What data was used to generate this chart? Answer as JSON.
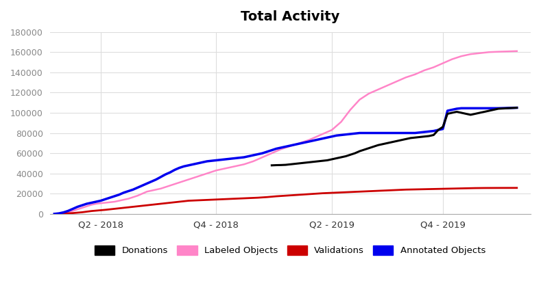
{
  "title": "Total Activity",
  "title_fontsize": 14,
  "title_fontweight": "bold",
  "background_color": "#ffffff",
  "ylim": [
    0,
    180000
  ],
  "yticks": [
    0,
    20000,
    40000,
    60000,
    80000,
    100000,
    120000,
    140000,
    160000,
    180000
  ],
  "xtick_labels": [
    "Q2 - 2018",
    "Q4 - 2018",
    "Q2 - 2019",
    "Q4 - 2019"
  ],
  "grid_color": "#dddddd",
  "series": {
    "labeled_objects": {
      "color": "#ff85c8",
      "label": "Labeled Objects",
      "linewidth": 1.8,
      "points": [
        [
          0.0,
          0
        ],
        [
          0.01,
          500
        ],
        [
          0.02,
          1000
        ],
        [
          0.03,
          2000
        ],
        [
          0.04,
          3000
        ],
        [
          0.05,
          4500
        ],
        [
          0.06,
          6000
        ],
        [
          0.07,
          7500
        ],
        [
          0.08,
          9000
        ],
        [
          0.09,
          10000
        ],
        [
          0.1,
          10500
        ],
        [
          0.11,
          11000
        ],
        [
          0.12,
          11500
        ],
        [
          0.13,
          12000
        ],
        [
          0.14,
          13000
        ],
        [
          0.15,
          14000
        ],
        [
          0.16,
          15000
        ],
        [
          0.17,
          16500
        ],
        [
          0.18,
          18000
        ],
        [
          0.19,
          20000
        ],
        [
          0.2,
          22000
        ],
        [
          0.21,
          23000
        ],
        [
          0.22,
          24000
        ],
        [
          0.23,
          25000
        ],
        [
          0.24,
          26500
        ],
        [
          0.25,
          28000
        ],
        [
          0.26,
          29500
        ],
        [
          0.27,
          31000
        ],
        [
          0.28,
          32500
        ],
        [
          0.29,
          34000
        ],
        [
          0.3,
          35500
        ],
        [
          0.31,
          37000
        ],
        [
          0.32,
          38500
        ],
        [
          0.33,
          40000
        ],
        [
          0.34,
          41500
        ],
        [
          0.35,
          43000
        ],
        [
          0.36,
          44000
        ],
        [
          0.37,
          45000
        ],
        [
          0.38,
          46000
        ],
        [
          0.39,
          47000
        ],
        [
          0.4,
          48000
        ],
        [
          0.41,
          49000
        ],
        [
          0.42,
          50500
        ],
        [
          0.43,
          52000
        ],
        [
          0.44,
          54000
        ],
        [
          0.45,
          56000
        ],
        [
          0.46,
          58000
        ],
        [
          0.47,
          60000
        ],
        [
          0.48,
          62000
        ],
        [
          0.49,
          64000
        ],
        [
          0.5,
          65500
        ],
        [
          0.51,
          67000
        ],
        [
          0.52,
          68500
        ],
        [
          0.53,
          70000
        ],
        [
          0.54,
          71500
        ],
        [
          0.55,
          73000
        ],
        [
          0.56,
          75000
        ],
        [
          0.57,
          77000
        ],
        [
          0.58,
          79000
        ],
        [
          0.59,
          81000
        ],
        [
          0.6,
          83000
        ],
        [
          0.61,
          87000
        ],
        [
          0.62,
          91000
        ],
        [
          0.63,
          97000
        ],
        [
          0.64,
          103000
        ],
        [
          0.65,
          108000
        ],
        [
          0.66,
          113000
        ],
        [
          0.67,
          116000
        ],
        [
          0.68,
          119000
        ],
        [
          0.69,
          121000
        ],
        [
          0.7,
          123000
        ],
        [
          0.71,
          125000
        ],
        [
          0.72,
          127000
        ],
        [
          0.73,
          129000
        ],
        [
          0.74,
          131000
        ],
        [
          0.75,
          133000
        ],
        [
          0.76,
          135000
        ],
        [
          0.77,
          136500
        ],
        [
          0.78,
          138000
        ],
        [
          0.79,
          140000
        ],
        [
          0.8,
          142000
        ],
        [
          0.81,
          143500
        ],
        [
          0.82,
          145000
        ],
        [
          0.83,
          147000
        ],
        [
          0.84,
          149000
        ],
        [
          0.85,
          151000
        ],
        [
          0.86,
          153000
        ],
        [
          0.87,
          154500
        ],
        [
          0.88,
          156000
        ],
        [
          0.89,
          157000
        ],
        [
          0.9,
          158000
        ],
        [
          0.91,
          158500
        ],
        [
          0.92,
          159000
        ],
        [
          0.93,
          159500
        ],
        [
          0.94,
          160000
        ],
        [
          0.95,
          160200
        ],
        [
          0.96,
          160400
        ],
        [
          1.0,
          161000
        ]
      ]
    },
    "validations": {
      "color": "#cc0000",
      "label": "Validations",
      "linewidth": 2.0,
      "points": [
        [
          0.0,
          0
        ],
        [
          0.01,
          200
        ],
        [
          0.02,
          400
        ],
        [
          0.03,
          600
        ],
        [
          0.04,
          800
        ],
        [
          0.05,
          1200
        ],
        [
          0.06,
          1600
        ],
        [
          0.07,
          2200
        ],
        [
          0.08,
          2800
        ],
        [
          0.09,
          3200
        ],
        [
          0.1,
          3600
        ],
        [
          0.11,
          4000
        ],
        [
          0.12,
          4500
        ],
        [
          0.13,
          5000
        ],
        [
          0.14,
          5500
        ],
        [
          0.15,
          6000
        ],
        [
          0.16,
          6500
        ],
        [
          0.17,
          7000
        ],
        [
          0.18,
          7500
        ],
        [
          0.19,
          8000
        ],
        [
          0.2,
          8500
        ],
        [
          0.21,
          9000
        ],
        [
          0.22,
          9500
        ],
        [
          0.23,
          10000
        ],
        [
          0.24,
          10500
        ],
        [
          0.25,
          11000
        ],
        [
          0.26,
          11500
        ],
        [
          0.27,
          12000
        ],
        [
          0.28,
          12500
        ],
        [
          0.29,
          13000
        ],
        [
          0.3,
          13200
        ],
        [
          0.31,
          13400
        ],
        [
          0.32,
          13600
        ],
        [
          0.33,
          13800
        ],
        [
          0.34,
          14000
        ],
        [
          0.35,
          14200
        ],
        [
          0.36,
          14400
        ],
        [
          0.37,
          14600
        ],
        [
          0.38,
          14800
        ],
        [
          0.39,
          15000
        ],
        [
          0.4,
          15200
        ],
        [
          0.41,
          15400
        ],
        [
          0.42,
          15600
        ],
        [
          0.43,
          15800
        ],
        [
          0.44,
          16000
        ],
        [
          0.45,
          16300
        ],
        [
          0.46,
          16600
        ],
        [
          0.47,
          17000
        ],
        [
          0.48,
          17400
        ],
        [
          0.49,
          17700
        ],
        [
          0.5,
          18000
        ],
        [
          0.51,
          18300
        ],
        [
          0.52,
          18600
        ],
        [
          0.53,
          18900
        ],
        [
          0.54,
          19200
        ],
        [
          0.55,
          19500
        ],
        [
          0.56,
          19800
        ],
        [
          0.57,
          20100
        ],
        [
          0.58,
          20400
        ],
        [
          0.59,
          20600
        ],
        [
          0.6,
          20800
        ],
        [
          0.61,
          21000
        ],
        [
          0.62,
          21200
        ],
        [
          0.63,
          21400
        ],
        [
          0.64,
          21600
        ],
        [
          0.65,
          21800
        ],
        [
          0.66,
          22000
        ],
        [
          0.67,
          22200
        ],
        [
          0.68,
          22400
        ],
        [
          0.69,
          22600
        ],
        [
          0.7,
          22800
        ],
        [
          0.71,
          23000
        ],
        [
          0.72,
          23200
        ],
        [
          0.73,
          23400
        ],
        [
          0.74,
          23600
        ],
        [
          0.75,
          23800
        ],
        [
          0.76,
          24000
        ],
        [
          0.77,
          24100
        ],
        [
          0.78,
          24200
        ],
        [
          0.79,
          24300
        ],
        [
          0.8,
          24400
        ],
        [
          0.81,
          24500
        ],
        [
          0.82,
          24600
        ],
        [
          0.83,
          24700
        ],
        [
          0.84,
          24800
        ],
        [
          0.85,
          24900
        ],
        [
          0.86,
          25000
        ],
        [
          0.87,
          25100
        ],
        [
          0.88,
          25200
        ],
        [
          0.89,
          25300
        ],
        [
          0.9,
          25400
        ],
        [
          0.91,
          25500
        ],
        [
          0.92,
          25550
        ],
        [
          0.93,
          25600
        ],
        [
          0.94,
          25620
        ],
        [
          0.95,
          25640
        ],
        [
          0.96,
          25660
        ],
        [
          1.0,
          25700
        ]
      ]
    },
    "annotated_objects": {
      "color": "#0000ee",
      "label": "Annotated Objects",
      "linewidth": 2.5,
      "points": [
        [
          0.0,
          0
        ],
        [
          0.01,
          500
        ],
        [
          0.02,
          1500
        ],
        [
          0.03,
          3000
        ],
        [
          0.04,
          5000
        ],
        [
          0.05,
          7000
        ],
        [
          0.06,
          8500
        ],
        [
          0.07,
          10000
        ],
        [
          0.08,
          11000
        ],
        [
          0.09,
          12000
        ],
        [
          0.1,
          13000
        ],
        [
          0.11,
          14500
        ],
        [
          0.12,
          16000
        ],
        [
          0.13,
          17500
        ],
        [
          0.14,
          19000
        ],
        [
          0.15,
          21000
        ],
        [
          0.16,
          22500
        ],
        [
          0.17,
          24000
        ],
        [
          0.18,
          26000
        ],
        [
          0.19,
          28000
        ],
        [
          0.2,
          30000
        ],
        [
          0.21,
          32000
        ],
        [
          0.22,
          34000
        ],
        [
          0.23,
          36500
        ],
        [
          0.24,
          39000
        ],
        [
          0.25,
          41000
        ],
        [
          0.26,
          43500
        ],
        [
          0.27,
          45500
        ],
        [
          0.28,
          47000
        ],
        [
          0.29,
          48000
        ],
        [
          0.3,
          49000
        ],
        [
          0.31,
          50000
        ],
        [
          0.32,
          51000
        ],
        [
          0.33,
          52000
        ],
        [
          0.34,
          52500
        ],
        [
          0.35,
          53000
        ],
        [
          0.36,
          53500
        ],
        [
          0.37,
          54000
        ],
        [
          0.38,
          54500
        ],
        [
          0.39,
          55000
        ],
        [
          0.4,
          55500
        ],
        [
          0.41,
          56000
        ],
        [
          0.42,
          57000
        ],
        [
          0.43,
          58000
        ],
        [
          0.44,
          59000
        ],
        [
          0.45,
          60000
        ],
        [
          0.46,
          61500
        ],
        [
          0.47,
          63000
        ],
        [
          0.48,
          64500
        ],
        [
          0.49,
          65500
        ],
        [
          0.5,
          66500
        ],
        [
          0.51,
          67500
        ],
        [
          0.52,
          68500
        ],
        [
          0.53,
          69500
        ],
        [
          0.54,
          70500
        ],
        [
          0.55,
          71500
        ],
        [
          0.56,
          72500
        ],
        [
          0.57,
          73500
        ],
        [
          0.58,
          74500
        ],
        [
          0.59,
          75500
        ],
        [
          0.6,
          76500
        ],
        [
          0.61,
          77500
        ],
        [
          0.62,
          78000
        ],
        [
          0.63,
          78500
        ],
        [
          0.64,
          79000
        ],
        [
          0.65,
          79500
        ],
        [
          0.66,
          80000
        ],
        [
          0.67,
          80000
        ],
        [
          0.68,
          80000
        ],
        [
          0.69,
          80000
        ],
        [
          0.7,
          80000
        ],
        [
          0.71,
          80000
        ],
        [
          0.72,
          80000
        ],
        [
          0.73,
          80000
        ],
        [
          0.74,
          80000
        ],
        [
          0.75,
          80000
        ],
        [
          0.76,
          80000
        ],
        [
          0.77,
          80000
        ],
        [
          0.78,
          80000
        ],
        [
          0.79,
          80500
        ],
        [
          0.8,
          81000
        ],
        [
          0.81,
          81500
        ],
        [
          0.82,
          82000
        ],
        [
          0.83,
          83000
        ],
        [
          0.84,
          84000
        ],
        [
          0.85,
          102000
        ],
        [
          0.86,
          103000
        ],
        [
          0.87,
          104000
        ],
        [
          0.88,
          104500
        ],
        [
          0.89,
          104500
        ],
        [
          0.9,
          104500
        ],
        [
          0.91,
          104500
        ],
        [
          0.92,
          104500
        ],
        [
          0.93,
          104500
        ],
        [
          0.94,
          104500
        ],
        [
          0.95,
          104500
        ],
        [
          0.96,
          104500
        ],
        [
          1.0,
          105000
        ]
      ]
    },
    "donations": {
      "color": "#000000",
      "label": "Donations",
      "linewidth": 2.2,
      "points": [
        [
          0.47,
          48000
        ],
        [
          0.48,
          48200
        ],
        [
          0.49,
          48300
        ],
        [
          0.5,
          48500
        ],
        [
          0.51,
          49000
        ],
        [
          0.52,
          49500
        ],
        [
          0.53,
          50000
        ],
        [
          0.54,
          50500
        ],
        [
          0.55,
          51000
        ],
        [
          0.56,
          51500
        ],
        [
          0.57,
          52000
        ],
        [
          0.58,
          52500
        ],
        [
          0.59,
          53000
        ],
        [
          0.6,
          54000
        ],
        [
          0.61,
          55000
        ],
        [
          0.62,
          56000
        ],
        [
          0.63,
          57000
        ],
        [
          0.64,
          58500
        ],
        [
          0.65,
          60000
        ],
        [
          0.66,
          62000
        ],
        [
          0.67,
          63500
        ],
        [
          0.68,
          65000
        ],
        [
          0.69,
          66500
        ],
        [
          0.7,
          68000
        ],
        [
          0.71,
          69000
        ],
        [
          0.72,
          70000
        ],
        [
          0.73,
          71000
        ],
        [
          0.74,
          72000
        ],
        [
          0.75,
          73000
        ],
        [
          0.76,
          74000
        ],
        [
          0.77,
          75000
        ],
        [
          0.78,
          75500
        ],
        [
          0.79,
          76000
        ],
        [
          0.8,
          76500
        ],
        [
          0.81,
          77000
        ],
        [
          0.82,
          78000
        ],
        [
          0.83,
          83000
        ],
        [
          0.84,
          86000
        ],
        [
          0.85,
          99000
        ],
        [
          0.86,
          100000
        ],
        [
          0.87,
          101000
        ],
        [
          0.88,
          100000
        ],
        [
          0.89,
          99000
        ],
        [
          0.9,
          98000
        ],
        [
          0.91,
          99000
        ],
        [
          0.92,
          100000
        ],
        [
          0.93,
          101000
        ],
        [
          0.94,
          102000
        ],
        [
          0.95,
          103000
        ],
        [
          0.96,
          104000
        ],
        [
          1.0,
          105000
        ]
      ]
    }
  },
  "xtick_positions": [
    0.1,
    0.35,
    0.6,
    0.84
  ],
  "legend_items": [
    {
      "label": "Donations",
      "color": "#000000"
    },
    {
      "label": "Labeled Objects",
      "color": "#ff85c8"
    },
    {
      "label": "Validations",
      "color": "#cc0000"
    },
    {
      "label": "Annotated Objects",
      "color": "#0000ee"
    }
  ]
}
